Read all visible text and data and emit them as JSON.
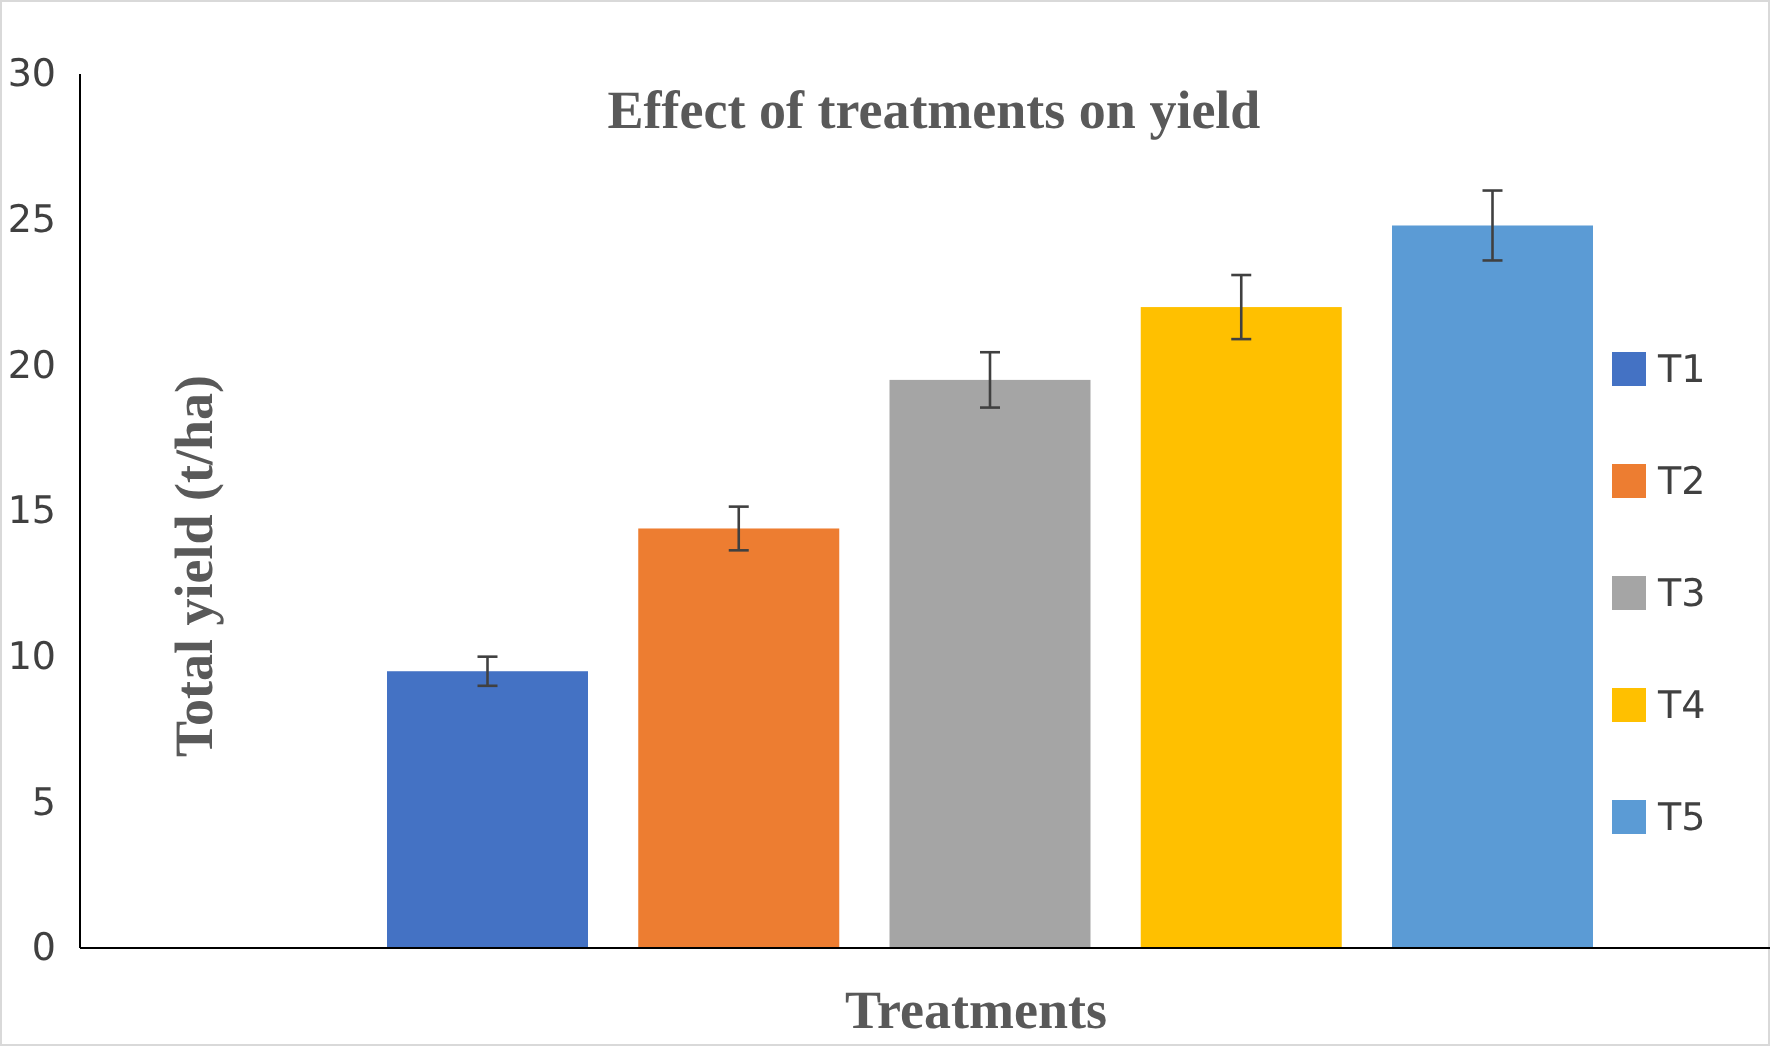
{
  "chart_data": {
    "type": "bar",
    "title": "Effect of treatments on yield",
    "xlabel": "Treatments",
    "ylabel": "Total yield (t/ha)",
    "categories": [
      null
    ],
    "series": [
      {
        "name": "T1",
        "color": "#4472c4",
        "values": [
          9.5
        ],
        "errors": [
          0.5
        ]
      },
      {
        "name": "T2",
        "color": "#ed7d31",
        "values": [
          14.4
        ],
        "errors": [
          0.75
        ]
      },
      {
        "name": "T3",
        "color": "#a5a5a5",
        "values": [
          19.5
        ],
        "errors": [
          0.95
        ]
      },
      {
        "name": "T4",
        "color": "#ffc000",
        "values": [
          22.0
        ],
        "errors": [
          1.1
        ]
      },
      {
        "name": "T5",
        "color": "#5b9bd5",
        "values": [
          24.8
        ],
        "errors": [
          1.2
        ]
      }
    ],
    "ylim": [
      0,
      30
    ],
    "yticks": [
      0,
      5,
      10,
      15,
      20,
      25,
      30
    ],
    "grid": false,
    "legend": "right"
  }
}
